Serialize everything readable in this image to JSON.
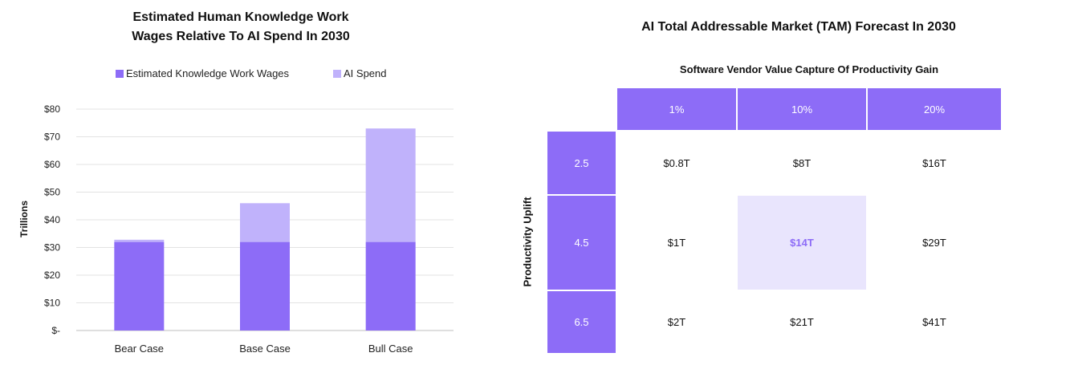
{
  "colors": {
    "wages": "#8d6cf7",
    "ai": "#c0b2fb",
    "header": "#8d6cf7",
    "highlight_bg": "#e9e5fd"
  },
  "left": {
    "title_line1": "Estimated Human Knowledge Work",
    "title_line2": "Wages Relative To AI Spend In 2030",
    "legend": [
      "Estimated Knowledge Work Wages",
      "AI Spend"
    ],
    "ylabel": "Trillions"
  },
  "chart_data": {
    "type": "bar",
    "stacked": true,
    "categories": [
      "Bear Case",
      "Base Case",
      "Bull Case"
    ],
    "series": [
      {
        "name": "Estimated Knowledge Work Wages",
        "values": [
          32,
          32,
          32
        ]
      },
      {
        "name": "AI Spend",
        "values": [
          0.8,
          14,
          41
        ]
      }
    ],
    "ylim": [
      0,
      80
    ],
    "yticks": [
      "$-",
      "$10",
      "$20",
      "$30",
      "$40",
      "$50",
      "$60",
      "$70",
      "$80"
    ],
    "ylabel": "Trillions",
    "grid": true,
    "legend_position": "top"
  },
  "right": {
    "title": "AI Total Addressable Market (TAM) Forecast In 2030",
    "subtitle": "Software Vendor Value Capture Of Productivity Gain",
    "row_axis_label": "Productivity Uplift",
    "columns": [
      "1%",
      "10%",
      "20%"
    ],
    "rows": [
      {
        "label": "2.5",
        "values": [
          "$0.8T",
          "$8T",
          "$16T"
        ]
      },
      {
        "label": "4.5",
        "values": [
          "$1T",
          "$14T",
          "$29T"
        ]
      },
      {
        "label": "6.5",
        "values": [
          "$2T",
          "$21T",
          "$41T"
        ]
      }
    ],
    "highlight": {
      "row": 1,
      "col": 1
    }
  }
}
